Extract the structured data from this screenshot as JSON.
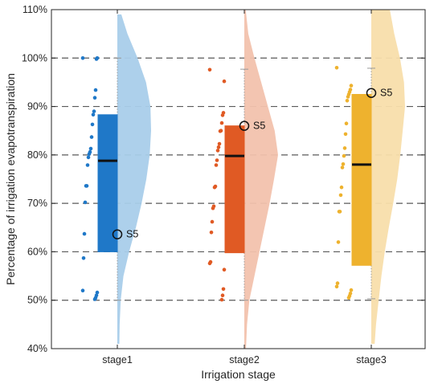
{
  "chart_data": {
    "type": "raincloud",
    "xlabel": "Irrigation stage",
    "ylabel": "Percentage of irrigation evapotranspiration",
    "ylim": [
      40,
      110
    ],
    "yticks": [
      40,
      50,
      60,
      70,
      80,
      90,
      100,
      110
    ],
    "ytick_labels": [
      "40%",
      "50%",
      "60%",
      "70%",
      "80%",
      "90%",
      "100%",
      "110%"
    ],
    "grid": "dashed horizontal at 50%-100%",
    "categories": [
      "stage1",
      "stage2",
      "stage3"
    ],
    "series": [
      {
        "category": "stage1",
        "color": "#1f78c8",
        "density_color": "#a9cdea",
        "box": {
          "q1": 60,
          "median": 78.8,
          "q3": 88.3,
          "whisker_low": 50,
          "whisker_high": 100
        },
        "points": [
          100,
          100,
          99.8,
          93.4,
          91.8,
          89,
          88.3,
          86.3,
          83.7,
          81.3,
          80.6,
          80.2,
          79.5,
          77.9,
          73.6,
          73.6,
          70.2,
          63.7,
          58.7,
          52,
          51.6,
          51,
          50.5,
          50.2
        ],
        "density": [
          [
            41,
            0.06
          ],
          [
            45,
            0.07
          ],
          [
            50,
            0.1
          ],
          [
            55,
            0.18
          ],
          [
            60,
            0.35
          ],
          [
            65,
            0.55
          ],
          [
            70,
            0.72
          ],
          [
            75,
            0.86
          ],
          [
            80,
            0.96
          ],
          [
            85,
            1.0
          ],
          [
            90,
            0.98
          ],
          [
            95,
            0.85
          ],
          [
            100,
            0.6
          ],
          [
            105,
            0.3
          ],
          [
            109,
            0.12
          ]
        ],
        "annotation": {
          "label": "S5",
          "y": 63.6
        }
      },
      {
        "category": "stage2",
        "color": "#e05a24",
        "density_color": "#f2c2ad",
        "box": {
          "q1": 59.8,
          "median": 79.8,
          "q3": 86,
          "whisker_low": 50,
          "whisker_high": 97.7
        },
        "points": [
          97.6,
          95.2,
          88.7,
          88.2,
          86.6,
          85,
          84.9,
          82.3,
          81.6,
          80.9,
          78.9,
          77.9,
          73.5,
          73.3,
          69.4,
          69,
          66.2,
          64,
          57.9,
          57.6,
          56.3,
          52.3,
          51,
          50.1
        ],
        "density": [
          [
            40,
            0.05
          ],
          [
            45,
            0.08
          ],
          [
            50,
            0.15
          ],
          [
            55,
            0.3
          ],
          [
            60,
            0.45
          ],
          [
            65,
            0.6
          ],
          [
            70,
            0.75
          ],
          [
            75,
            0.88
          ],
          [
            80,
            1.0
          ],
          [
            85,
            0.9
          ],
          [
            90,
            0.7
          ],
          [
            95,
            0.5
          ],
          [
            100,
            0.3
          ],
          [
            105,
            0.12
          ],
          [
            110,
            0.04
          ]
        ],
        "annotation": {
          "label": "S5",
          "y": 86
        }
      },
      {
        "category": "stage3",
        "color": "#eeb22e",
        "density_color": "#f8deab",
        "box": {
          "q1": 57.2,
          "median": 78,
          "q3": 92.5,
          "whisker_low": 50.3,
          "whisker_high": 97.9
        },
        "points": [
          98,
          94.3,
          93.5,
          93,
          92.5,
          92,
          91.2,
          86.5,
          84.3,
          81.4,
          79.8,
          78.1,
          77.4,
          73.3,
          71.7,
          68.3,
          68.3,
          62,
          53.5,
          52.8,
          52.1,
          51.4,
          50.9,
          50.5
        ],
        "density": [
          [
            41,
            0.1
          ],
          [
            45,
            0.14
          ],
          [
            50,
            0.22
          ],
          [
            55,
            0.3
          ],
          [
            60,
            0.4
          ],
          [
            65,
            0.52
          ],
          [
            70,
            0.65
          ],
          [
            75,
            0.77
          ],
          [
            80,
            0.86
          ],
          [
            85,
            0.93
          ],
          [
            90,
            1.0
          ],
          [
            95,
            0.97
          ],
          [
            100,
            0.85
          ],
          [
            105,
            0.68
          ],
          [
            110,
            0.55
          ]
        ],
        "annotation": {
          "label": "S5",
          "y": 92.8
        }
      }
    ]
  }
}
